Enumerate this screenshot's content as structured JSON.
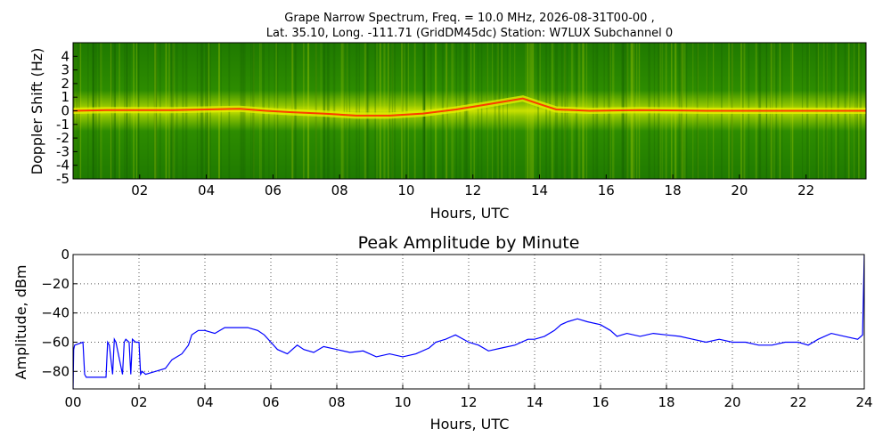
{
  "colors": {
    "spectrogram_low": "#1f7a00",
    "spectrogram_mid": "#e6f000",
    "spectrogram_high": "#ff2a00",
    "amplitude_line": "#0000ff",
    "grid": "#555555"
  },
  "chart_data": [
    {
      "type": "heatmap",
      "title_line1": "Grape Narrow Spectrum, Freq. = 10.0 MHz, 2026-08-31T00-00 ,",
      "title_line2": "Lat.  35.10, Long. -111.71 (GridDM45dc) Station: W7LUX Subchannel 0",
      "xlabel": "Hours, UTC",
      "ylabel": "Doppler Shift (Hz)",
      "xlim": [
        0,
        23.8
      ],
      "ylim": [
        -5,
        5
      ],
      "x_tick_labels": [
        "02",
        "04",
        "06",
        "08",
        "10",
        "12",
        "14",
        "16",
        "18",
        "20",
        "22"
      ],
      "y_tick_labels": [
        "4",
        "3",
        "2",
        "1",
        "0",
        "-1",
        "-2",
        "-3",
        "-4",
        "-5"
      ],
      "doppler_trace": [
        {
          "x": 0.0,
          "y": 0.0
        },
        {
          "x": 1.0,
          "y": 0.05
        },
        {
          "x": 2.0,
          "y": 0.05
        },
        {
          "x": 3.0,
          "y": 0.05
        },
        {
          "x": 4.0,
          "y": 0.1
        },
        {
          "x": 5.0,
          "y": 0.15
        },
        {
          "x": 5.8,
          "y": 0.0
        },
        {
          "x": 6.5,
          "y": -0.1
        },
        {
          "x": 7.5,
          "y": -0.2
        },
        {
          "x": 8.5,
          "y": -0.35
        },
        {
          "x": 9.5,
          "y": -0.35
        },
        {
          "x": 10.5,
          "y": -0.2
        },
        {
          "x": 11.5,
          "y": 0.1
        },
        {
          "x": 12.5,
          "y": 0.5
        },
        {
          "x": 13.5,
          "y": 0.9
        },
        {
          "x": 14.0,
          "y": 0.5
        },
        {
          "x": 14.5,
          "y": 0.1
        },
        {
          "x": 15.5,
          "y": 0.0
        },
        {
          "x": 17.0,
          "y": 0.05
        },
        {
          "x": 19.0,
          "y": 0.0
        },
        {
          "x": 21.0,
          "y": 0.0
        },
        {
          "x": 23.8,
          "y": 0.0
        }
      ]
    },
    {
      "type": "line",
      "title": "Peak Amplitude by Minute",
      "xlabel": "Hours, UTC",
      "ylabel": "Amplitude, dBm",
      "xlim": [
        0,
        24
      ],
      "ylim": [
        -92,
        0
      ],
      "grid": true,
      "x_tick_labels": [
        "00",
        "02",
        "04",
        "06",
        "08",
        "10",
        "12",
        "14",
        "16",
        "18",
        "20",
        "22",
        "24"
      ],
      "y_tick_labels": [
        "0",
        "-20",
        "-40",
        "-60",
        "-80"
      ],
      "series": [
        {
          "x": [
            0,
            0.02,
            0.05,
            0.3,
            0.35,
            0.4,
            0.6,
            0.8,
            1.0,
            1.05,
            1.1,
            1.2,
            1.25,
            1.3,
            1.5,
            1.55,
            1.6,
            1.7,
            1.75,
            1.8,
            1.9,
            2.0,
            2.05,
            2.1,
            2.2,
            2.5,
            2.8,
            3.0,
            3.3,
            3.5,
            3.6,
            3.8,
            4.0,
            4.3,
            4.6,
            5.0,
            5.3,
            5.6,
            5.8,
            6.0,
            6.2,
            6.5,
            6.8,
            7.0,
            7.3,
            7.6,
            8.0,
            8.4,
            8.8,
            9.2,
            9.6,
            10.0,
            10.4,
            10.8,
            11.0,
            11.3,
            11.6,
            12.0,
            12.3,
            12.6,
            13.0,
            13.4,
            13.8,
            14.0,
            14.3,
            14.6,
            14.8,
            15.0,
            15.3,
            15.6,
            16.0,
            16.3,
            16.5,
            16.8,
            17.2,
            17.6,
            18.0,
            18.4,
            18.8,
            19.2,
            19.6,
            20.0,
            20.4,
            20.8,
            21.2,
            21.6,
            22.0,
            22.3,
            22.6,
            23.0,
            23.4,
            23.8,
            23.95,
            24.0
          ],
          "values": [
            -92,
            -65,
            -62,
            -60,
            -82,
            -84,
            -84,
            -84,
            -84,
            -60,
            -62,
            -82,
            -58,
            -60,
            -82,
            -60,
            -58,
            -60,
            -82,
            -58,
            -60,
            -60,
            -82,
            -80,
            -82,
            -80,
            -78,
            -72,
            -68,
            -62,
            -55,
            -52,
            -52,
            -54,
            -50,
            -50,
            -50,
            -52,
            -55,
            -60,
            -65,
            -68,
            -62,
            -65,
            -67,
            -63,
            -65,
            -67,
            -66,
            -70,
            -68,
            -70,
            -68,
            -64,
            -60,
            -58,
            -55,
            -60,
            -62,
            -66,
            -64,
            -62,
            -58,
            -58,
            -56,
            -52,
            -48,
            -46,
            -44,
            -46,
            -48,
            -52,
            -56,
            -54,
            -56,
            -54,
            -55,
            -56,
            -58,
            -60,
            -58,
            -60,
            -60,
            -62,
            -62,
            -60,
            -60,
            -62,
            -58,
            -54,
            -56,
            -58,
            -55,
            0
          ]
        }
      ]
    }
  ]
}
